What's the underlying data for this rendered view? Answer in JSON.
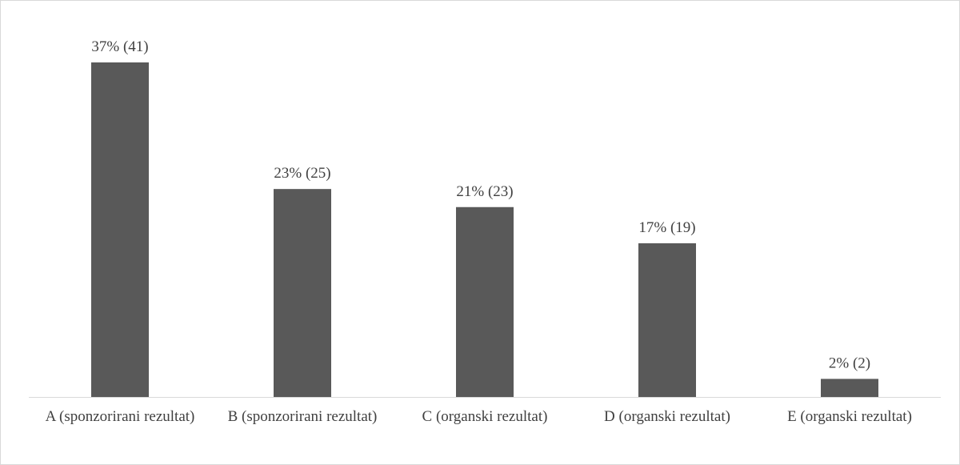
{
  "chart_data": {
    "type": "bar",
    "categories": [
      "A (sponzorirani rezultat)",
      "B (sponzorirani rezultat)",
      "C (organski rezultat)",
      "D (organski rezultat)",
      "E (organski rezultat)"
    ],
    "values": [
      37,
      23,
      21,
      17,
      2
    ],
    "value_labels": [
      "37% (41)",
      "23% (25)",
      "21% (23)",
      "17% (19)",
      "2% (2)"
    ],
    "color": "#595959"
  }
}
